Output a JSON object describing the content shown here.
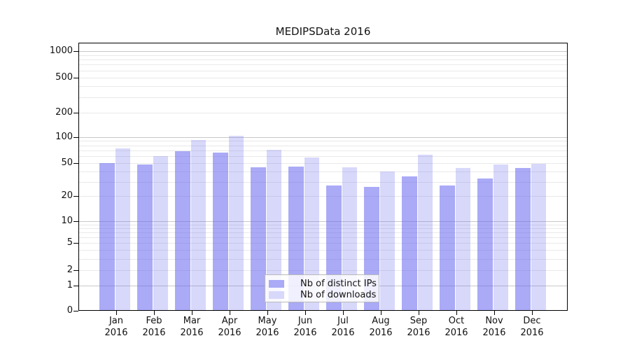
{
  "chart_data": {
    "type": "bar",
    "title": "MEDIPSData 2016",
    "categories": [
      "Jan",
      "Feb",
      "Mar",
      "Apr",
      "May",
      "Jun",
      "Jul",
      "Aug",
      "Sep",
      "Oct",
      "Nov",
      "Dec"
    ],
    "category_year": "2016",
    "series": [
      {
        "name": "Nb of distinct IPs",
        "fill": "rgba(100,100,240,0.55)",
        "solid": "#aaaaf7",
        "values": [
          50,
          48,
          69,
          66,
          45,
          46,
          27,
          26,
          35,
          27,
          33,
          44
        ]
      },
      {
        "name": "Nb of downloads",
        "fill": "rgba(100,100,240,0.25)",
        "solid": "#d8d8fb",
        "values": [
          74,
          61,
          92,
          103,
          71,
          58,
          45,
          40,
          63,
          44,
          48,
          49
        ]
      }
    ],
    "y_axis": {
      "scale": "log10(value+1)",
      "ticks": [
        0,
        1,
        2,
        5,
        10,
        20,
        50,
        100,
        200,
        500,
        1000
      ],
      "tick_labels": [
        "0",
        "1",
        "2",
        "5",
        "10",
        "20",
        "50",
        "100",
        "200",
        "500",
        "1000"
      ],
      "range": [
        0,
        1000
      ],
      "grid": "horizontal major and minor"
    },
    "legend_position": "bottom-center",
    "colors": {
      "grid_major": "#c8c8c8",
      "grid_minor": "#e9e9e9",
      "axis": "#000000",
      "background": "#ffffff"
    }
  }
}
